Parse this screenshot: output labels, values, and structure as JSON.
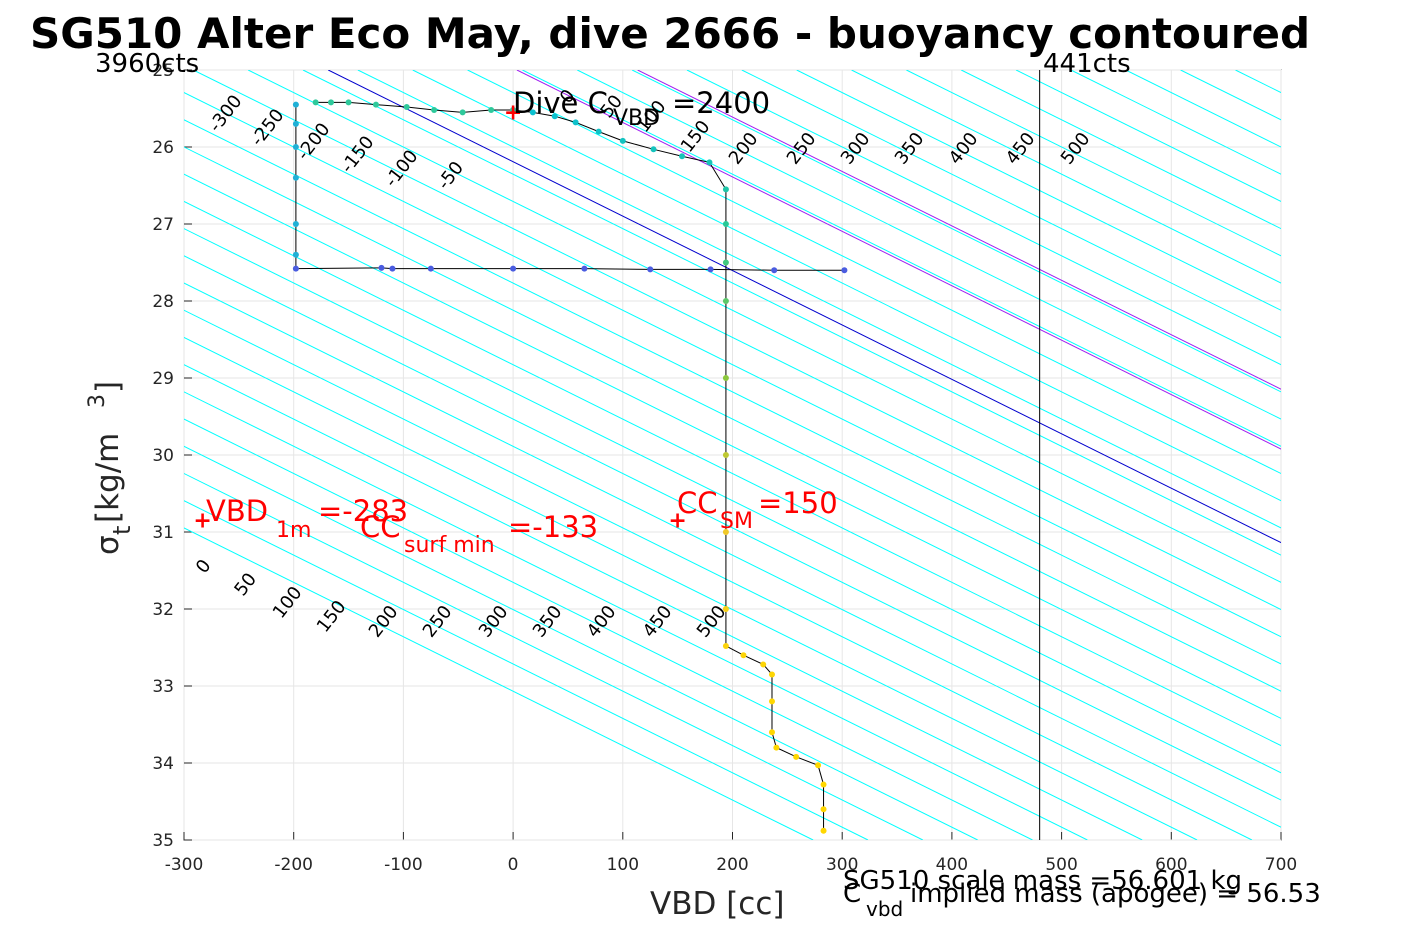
{
  "title": "SG510 Alter Eco May, dive 2666 - buoyancy contoured",
  "xlabel": "VBD [cc]",
  "ylabel": {
    "main": "σ",
    "sub": "t",
    "unit": " [kg/m",
    "sup": "3",
    "close": "]"
  },
  "left_counts": "3960cts",
  "right_counts": "441cts",
  "dive_label": {
    "text": "Dive C",
    "sub": "VBD",
    "value": "=2400"
  },
  "vbd1m": {
    "text": "VBD",
    "sub": "1m",
    "value": "=-283"
  },
  "cc_surf": {
    "text": "CC",
    "sub": "surf min",
    "value": "=-133"
  },
  "cc_sm": {
    "text": "CC",
    "sub": "SM",
    "value": "=150"
  },
  "footer1": "SG510 scale mass =56.601 kg",
  "footer2": {
    "text": "C",
    "sub": "vbd",
    "value": " implied mass (apogee) = 56.53"
  },
  "colors": {
    "cyan": "#00ffff",
    "purple": "#a020f0",
    "blue": "#0000cd",
    "red": "#ff0000",
    "trace": "#000000"
  },
  "chart_data": {
    "type": "scatter",
    "xlim": [
      -300,
      700
    ],
    "ylim": [
      25,
      35
    ],
    "y_reversed": true,
    "xticks": [
      -300,
      -200,
      -100,
      0,
      100,
      200,
      300,
      400,
      500,
      600,
      700
    ],
    "yticks": [
      25,
      26,
      27,
      28,
      29,
      30,
      31,
      32,
      33,
      34,
      35
    ],
    "grid": true,
    "vertical_line_x": 480,
    "contour_slope_cc_per_sigma": 141.5,
    "contour_levels_upper": [
      {
        "label": "-300",
        "x_at_26": -300
      },
      {
        "label": "-250",
        "x_at_26": -250
      },
      {
        "label": "-200",
        "x_at_26": -200
      },
      {
        "label": "-150",
        "x_at_26": -150
      },
      {
        "label": "-100",
        "x_at_26": -100
      },
      {
        "label": "-50",
        "x_at_26": -50
      },
      {
        "label": "0",
        "x_at_26": 0
      },
      {
        "label": "50",
        "x_at_26": 50
      },
      {
        "label": "100",
        "x_at_26": 100
      },
      {
        "label": "150",
        "x_at_26": 150
      },
      {
        "label": "200",
        "x_at_26": 200
      },
      {
        "label": "250",
        "x_at_26": 250
      },
      {
        "label": "300",
        "x_at_26": 300
      },
      {
        "label": "350",
        "x_at_26": 350
      },
      {
        "label": "400",
        "x_at_26": 400
      },
      {
        "label": "450",
        "x_at_26": 450
      },
      {
        "label": "500",
        "x_at_26": 500
      }
    ],
    "contour_levels_lower": [
      "0",
      "50",
      "100",
      "150",
      "200",
      "250",
      "300",
      "350",
      "400",
      "450",
      "500"
    ],
    "annotation_markers": [
      {
        "x": -283,
        "y": 30.85,
        "color": "#ff0000"
      },
      {
        "x": 150,
        "y": 30.85,
        "color": "#ff0000"
      },
      {
        "x": 0,
        "y": 25.55,
        "color": "#ff0000"
      }
    ],
    "trace_points": [
      [
        0,
        25.52
      ],
      [
        18,
        25.55
      ],
      [
        38,
        25.6
      ],
      [
        57,
        25.68
      ],
      [
        78,
        25.8
      ],
      [
        100,
        25.92
      ],
      [
        128,
        26.03
      ],
      [
        154,
        26.12
      ],
      [
        179,
        26.2
      ],
      [
        194,
        26.55
      ],
      [
        194,
        27.0
      ],
      [
        194,
        27.5
      ],
      [
        194,
        28.0
      ],
      [
        194,
        29.0
      ],
      [
        194,
        30.0
      ],
      [
        194,
        31.0
      ],
      [
        194,
        32.0
      ],
      [
        194,
        32.48
      ],
      [
        210,
        32.6
      ],
      [
        228,
        32.72
      ],
      [
        236,
        32.85
      ],
      [
        236,
        33.2
      ],
      [
        236,
        33.6
      ],
      [
        240,
        33.8
      ],
      [
        258,
        33.92
      ],
      [
        278,
        34.03
      ],
      [
        283,
        34.28
      ],
      [
        283,
        34.6
      ],
      [
        283,
        34.88
      ]
    ],
    "descent_points": [
      [
        -180,
        25.42
      ],
      [
        -166,
        25.42
      ],
      [
        -150,
        25.42
      ],
      [
        -125,
        25.45
      ],
      [
        -97,
        25.48
      ],
      [
        -72,
        25.52
      ],
      [
        -46,
        25.55
      ],
      [
        -20,
        25.52
      ],
      [
        0,
        25.52
      ],
      [
        -198,
        25.45
      ],
      [
        -198,
        25.7
      ],
      [
        -198,
        26.0
      ],
      [
        -198,
        26.4
      ],
      [
        -198,
        27.0
      ],
      [
        -198,
        27.4
      ],
      [
        -198,
        27.58
      ],
      [
        -120,
        27.57
      ],
      [
        -110,
        27.58
      ],
      [
        -75,
        27.58
      ],
      [
        0,
        27.58
      ],
      [
        65,
        27.58
      ],
      [
        125,
        27.59
      ],
      [
        180,
        27.59
      ],
      [
        238,
        27.6
      ],
      [
        302,
        27.6
      ]
    ]
  }
}
